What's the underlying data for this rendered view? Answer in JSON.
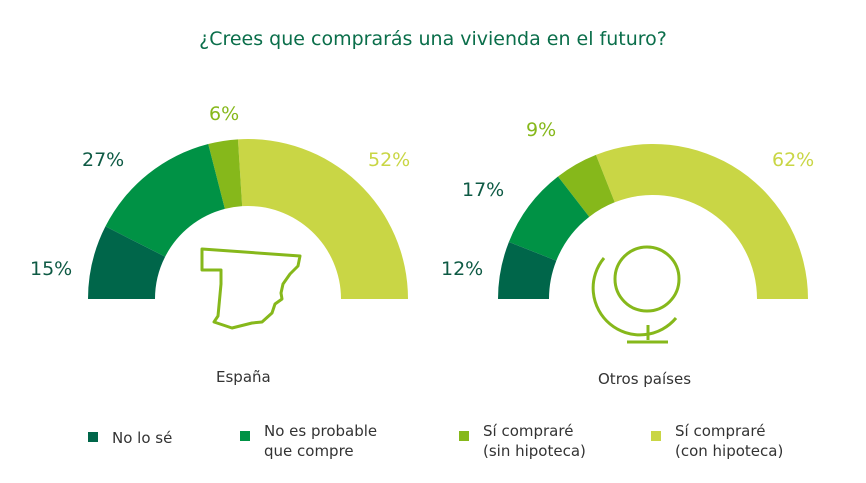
{
  "title": "¿Crees que comprarás una vivienda en el futuro?",
  "colors": {
    "title": "#0a6e4a",
    "no_lo_se": "#00664a",
    "no_probable": "#009245",
    "sin_hipoteca": "#86b81b",
    "con_hipoteca": "#c9d645"
  },
  "chart_data": [
    {
      "type": "pie",
      "subtype": "half-donut",
      "title": "España",
      "icon": "spain-map-icon",
      "categories": [
        "No lo sé",
        "No es probable que compre",
        "Sí compraré (sin hipoteca)",
        "Sí compraré (con hipoteca)"
      ],
      "values": [
        15,
        27,
        6,
        52
      ],
      "labels": [
        "15%",
        "27%",
        "6%",
        "52%"
      ]
    },
    {
      "type": "pie",
      "subtype": "half-donut",
      "title": "Otros países",
      "icon": "globe-icon",
      "categories": [
        "No lo sé",
        "No es probable que compre",
        "Sí compraré (sin hipoteca)",
        "Sí compraré (con hipoteca)"
      ],
      "values": [
        12,
        17,
        9,
        62
      ],
      "labels": [
        "12%",
        "17%",
        "9%",
        "62%"
      ]
    }
  ],
  "legend": [
    {
      "label": "No lo sé",
      "color": "#00664a"
    },
    {
      "label": "No es probable\nque compre",
      "color": "#009245"
    },
    {
      "label": "Sí compraré\n(sin hipoteca)",
      "color": "#86b81b"
    },
    {
      "label": "Sí compraré\n(con hipoteca)",
      "color": "#c9d645"
    }
  ]
}
